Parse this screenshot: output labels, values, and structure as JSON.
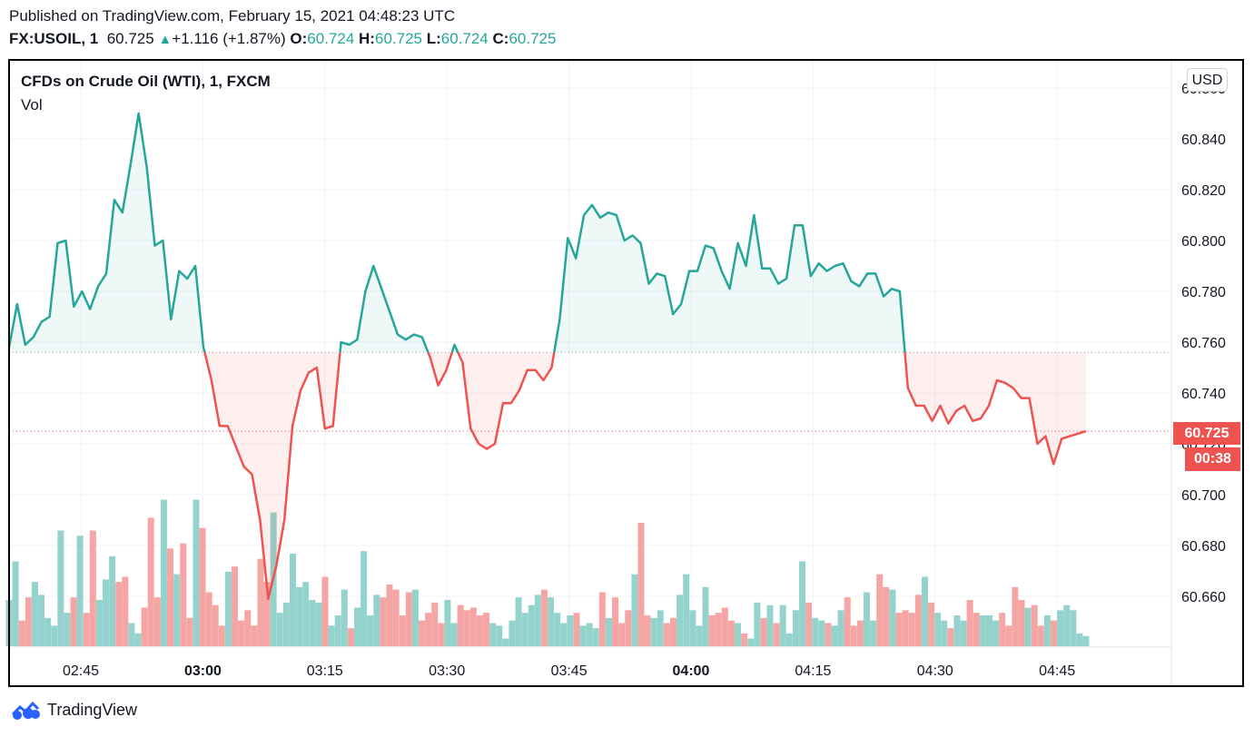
{
  "header": {
    "published": "Published on TradingView.com, February 15, 2021 04:48:23 UTC",
    "symbol": "FX:USOIL, 1",
    "last": "60.725",
    "change_arrow": "▲",
    "change": "+1.116 (+1.87%)",
    "o_label": "O:",
    "o_value": "60.724",
    "h_label": "H:",
    "h_value": "60.725",
    "l_label": "L:",
    "l_value": "60.724",
    "c_label": "C:",
    "c_value": "60.725"
  },
  "chart": {
    "instrument": "CFDs on Crude Oil (WTI), 1, FXCM",
    "volume_label": "Vol",
    "currency_button": "USD",
    "price_tag": "60.725",
    "countdown_tag": "00:38"
  },
  "footer": {
    "brand": "TradingView"
  },
  "colors": {
    "up": "#26a69a",
    "down": "#ef5350",
    "up_vol": "#94d3cd",
    "down_vol": "#f5a5a3"
  },
  "chart_data": {
    "type": "area",
    "baseline": 60.756,
    "last_price": 60.725,
    "ylim": [
      60.645,
      60.865
    ],
    "y_ticks": [
      60.66,
      60.68,
      60.7,
      60.72,
      60.74,
      60.76,
      60.78,
      60.8,
      60.82,
      60.84,
      60.86
    ],
    "y_tick_labels": [
      "60.660",
      "60.680",
      "60.700",
      "60.720",
      "60.740",
      "60.760",
      "60.780",
      "60.800",
      "60.820",
      "60.840",
      "60.860"
    ],
    "x_start_minute": 160,
    "x_range_minutes": [
      159,
      209
    ],
    "x_ticks": [
      165,
      180,
      195,
      210,
      225,
      240,
      255,
      270,
      285
    ],
    "x_tick_labels": [
      "02:45",
      "03:00",
      "03:15",
      "03:30",
      "03:45",
      "04:00",
      "04:15",
      "04:30",
      "04:45"
    ],
    "bold_x_ticks": [
      "03:00",
      "04:00"
    ],
    "grid": true,
    "series": [
      {
        "values": [
          60.758,
          60.775,
          60.759,
          60.762,
          60.768,
          60.77,
          60.799,
          60.8,
          60.774,
          60.78,
          60.773,
          60.782,
          60.787,
          60.816,
          60.811,
          60.83,
          60.85,
          60.829,
          60.798,
          60.8,
          60.769,
          60.788,
          60.785,
          60.79,
          60.758,
          60.745,
          60.727,
          60.727,
          60.719,
          60.711,
          60.708,
          60.69,
          60.659,
          60.672,
          60.69,
          60.727,
          60.741,
          60.748,
          60.75,
          60.726,
          60.727,
          60.76,
          60.759,
          60.761,
          60.78,
          60.79,
          60.781,
          60.772,
          60.763,
          60.761,
          60.763,
          60.762,
          60.754,
          60.743,
          60.749,
          60.759,
          60.752,
          60.726,
          60.72,
          60.718,
          60.72,
          60.736,
          60.736,
          60.741,
          60.749,
          60.749,
          60.745,
          60.75,
          60.769,
          60.801,
          60.793,
          60.81,
          60.814,
          60.809,
          60.811,
          60.81,
          60.8,
          60.802,
          60.799,
          60.783,
          60.787,
          60.786,
          60.771,
          60.775,
          60.788,
          60.788,
          60.798,
          60.797,
          60.788,
          60.781,
          60.799,
          60.79,
          60.81,
          60.789,
          60.789,
          60.783,
          60.785,
          60.806,
          60.806,
          60.786,
          60.791,
          60.788,
          60.79,
          60.791,
          60.784,
          60.782,
          60.787,
          60.787,
          60.778,
          60.781,
          60.78,
          60.742,
          60.735,
          60.735,
          60.729,
          60.735,
          60.728,
          60.733,
          60.735,
          60.729,
          60.73,
          60.735,
          60.745,
          60.744,
          60.742,
          60.738,
          60.738,
          60.72,
          60.723,
          60.712,
          60.722,
          60.723,
          60.724,
          60.725
        ]
      }
    ],
    "volume": {
      "max": 100,
      "values": [
        18,
        33,
        10,
        16,
        21,
        6,
        8,
        21,
        6,
        8,
        32,
        16,
        20,
        47,
        7,
        20,
        16,
        14,
        49,
        27,
        32,
        17,
        7,
        20,
        30,
        14,
        18,
        14,
        19,
        24,
        21,
        9,
        21,
        4,
        13,
        1,
        9,
        11,
        11,
        10,
        22,
        35,
        27,
        19,
        5,
        19,
        31,
        13,
        35,
        7,
        28,
        27,
        27,
        15,
        40,
        20,
        12,
        24,
        19,
        13,
        21,
        21,
        19,
        9,
        26,
        18,
        11,
        26,
        27,
        29,
        26,
        22,
        33,
        10,
        26,
        16,
        15,
        10,
        9,
        14,
        9,
        7,
        5,
        14,
        9,
        11,
        16,
        17,
        13,
        35,
        37,
        9,
        19,
        5,
        29,
        25,
        32,
        5,
        20,
        17,
        15,
        15,
        7,
        8,
        9,
        19,
        12,
        14,
        19,
        22,
        12,
        15,
        10,
        13,
        3,
        18,
        27,
        21,
        9,
        29,
        23,
        15,
        32,
        21,
        15,
        14,
        15,
        23,
        16,
        21,
        13,
        25,
        12,
        11,
        14,
        15,
        8,
        3,
        10,
        7,
        14,
        17,
        8,
        10,
        6,
        1,
        7,
        16,
        6,
        11,
        9,
        26,
        14,
        20,
        14,
        27,
        12,
        18,
        6,
        12,
        7,
        27,
        18,
        27,
        10,
        15,
        23,
        28,
        26,
        11,
        11,
        13,
        16,
        14,
        14,
        12,
        10,
        10,
        13,
        4,
        11,
        13,
        15,
        10,
        18,
        31,
        17,
        15,
        12,
        11,
        9,
        30,
        7,
        21,
        22,
        10,
        12,
        15,
        15,
        10,
        23,
        17,
        25,
        14,
        15,
        15,
        16,
        18,
        9,
        9,
        16,
        16,
        21,
        20,
        10,
        12,
        13,
        10,
        8,
        7,
        6,
        13,
        24,
        16,
        11,
        17,
        12,
        13,
        14,
        8,
        11,
        10,
        13,
        9,
        8,
        7,
        23,
        17,
        20,
        35,
        40,
        9,
        18,
        12,
        8,
        20,
        27,
        20,
        13,
        11,
        14,
        17,
        23,
        17,
        16,
        12,
        10,
        26,
        17,
        26,
        13,
        22,
        11,
        21,
        20,
        11,
        16,
        11,
        16,
        6,
        17,
        15,
        13,
        19,
        9,
        24,
        9,
        18,
        15,
        8,
        11,
        13,
        11,
        12,
        10,
        7,
        17,
        5,
        21,
        18,
        10,
        13,
        9,
        10,
        14,
        13,
        7,
        13,
        7,
        19,
        17,
        16,
        21,
        17,
        13,
        28,
        24,
        24,
        12,
        14,
        27,
        14,
        36,
        13,
        24,
        18,
        13,
        14,
        11,
        6,
        15,
        12,
        15,
        14,
        21,
        25,
        37,
        14,
        12,
        11,
        11,
        9,
        23,
        16,
        20,
        12,
        21,
        20,
        11,
        12,
        22,
        15,
        18,
        14,
        11,
        21,
        16,
        12,
        13,
        10,
        16,
        17,
        16,
        11,
        16,
        19,
        11,
        18,
        10,
        10,
        5,
        15,
        14,
        6,
        7,
        9,
        11,
        16,
        9,
        8,
        11,
        16,
        16,
        19,
        18,
        9,
        18,
        11,
        18,
        17,
        26,
        13,
        18,
        11,
        14,
        7,
        13,
        7,
        9,
        14,
        15,
        14,
        11,
        12,
        10,
        17,
        9,
        25,
        18,
        18,
        8,
        17,
        13,
        13,
        10,
        17,
        12,
        14,
        16,
        12,
        18,
        20,
        8,
        10,
        17,
        7,
        19,
        10,
        7,
        16,
        17,
        7,
        7,
        6,
        15,
        15,
        8,
        8,
        5,
        14,
        8,
        8,
        5,
        12,
        15,
        9,
        11,
        13,
        10,
        15,
        12,
        15,
        14,
        13,
        13,
        13,
        13,
        6,
        11,
        16,
        12,
        13,
        10,
        10,
        15,
        18,
        20,
        12,
        14,
        5,
        16,
        7,
        14,
        13,
        11,
        9,
        10,
        14,
        11,
        13,
        13,
        15,
        17,
        8,
        14,
        8,
        11,
        10,
        6,
        5,
        7,
        3,
        3
      ],
      "note": "",
      "bars": [
        18,
        33,
        10,
        19,
        25,
        20,
        11,
        8,
        45,
        13,
        19,
        43,
        13,
        45,
        18,
        26,
        35,
        25,
        27,
        9,
        5,
        15,
        50,
        19,
        57,
        38,
        28,
        40,
        11,
        57,
        46,
        21,
        16,
        8,
        29,
        31,
        10,
        14,
        8,
        34,
        25,
        52,
        13,
        17,
        36,
        23,
        25,
        18,
        17,
        27,
        8,
        12,
        22,
        7,
        15,
        37,
        12,
        20,
        19,
        24,
        22,
        12,
        21,
        22,
        10,
        13,
        17,
        9,
        18,
        9,
        16,
        14,
        15,
        12,
        13,
        9,
        8,
        3,
        10,
        19,
        13,
        16,
        20,
        22,
        19,
        13,
        9,
        12,
        13,
        8,
        9,
        7,
        21,
        11,
        19,
        9,
        14,
        28,
        48,
        12,
        11,
        14,
        9,
        11,
        20,
        28,
        14,
        8,
        23,
        12,
        13,
        15,
        10,
        9,
        5,
        3,
        17,
        11,
        16,
        9,
        16,
        5,
        14,
        33,
        17,
        11,
        10,
        9,
        8,
        14,
        19,
        8,
        10,
        21,
        10,
        28,
        23,
        22,
        13,
        14,
        13,
        20,
        27,
        17,
        13,
        10,
        7,
        12,
        10,
        18,
        13,
        12,
        12,
        10,
        13,
        8,
        23,
        18,
        15,
        16,
        8,
        12,
        10,
        14,
        16,
        14,
        5,
        4
      ]
    }
  }
}
